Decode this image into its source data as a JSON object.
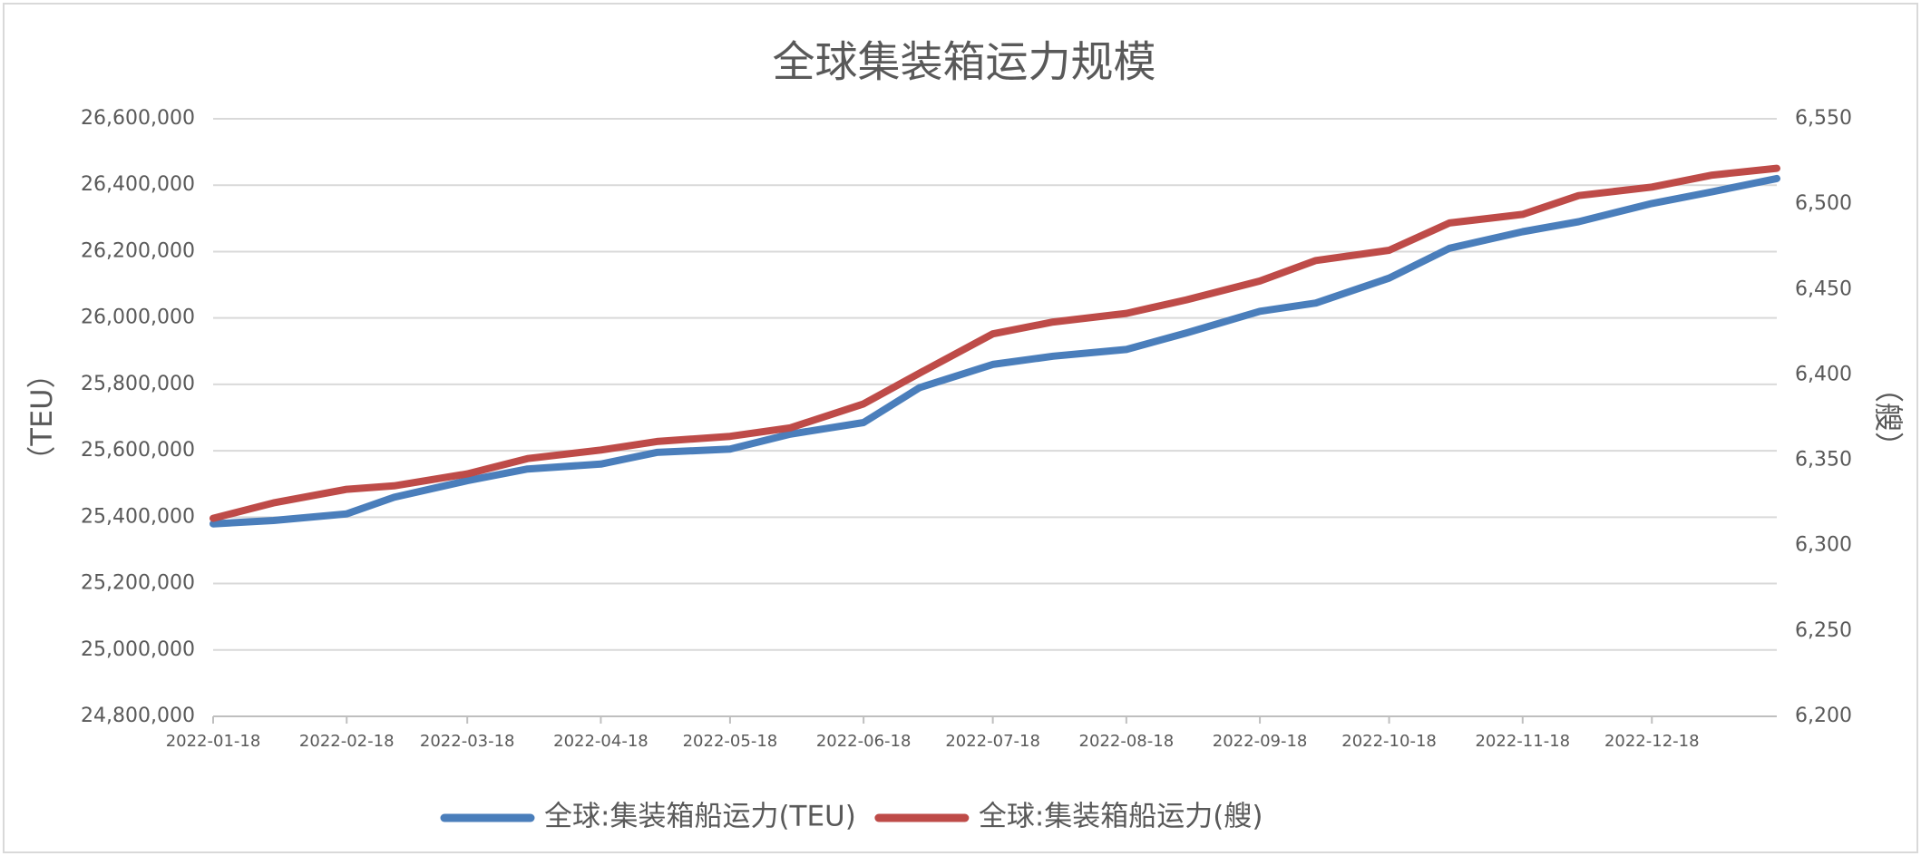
{
  "chart_data": {
    "type": "line",
    "title": "全球集装箱运力规模",
    "y_label": "（TEU）",
    "y2_label": "（艘）",
    "x": [
      "2022-01-18",
      "2022-02-01",
      "2022-02-18",
      "2022-03-01",
      "2022-03-18",
      "2022-04-01",
      "2022-04-18",
      "2022-05-01",
      "2022-05-18",
      "2022-06-01",
      "2022-06-18",
      "2022-07-01",
      "2022-07-18",
      "2022-08-01",
      "2022-08-18",
      "2022-09-01",
      "2022-09-18",
      "2022-10-01",
      "2022-10-18",
      "2022-11-01",
      "2022-11-18",
      "2022-12-01",
      "2022-12-18",
      "2023-01-01",
      "2023-01-16"
    ],
    "xlim": [
      "2022-01-18",
      "2023-01-16"
    ],
    "xticks": [
      "2022-01-18",
      "2022-02-18",
      "2022-03-18",
      "2022-04-18",
      "2022-05-18",
      "2022-06-18",
      "2022-07-18",
      "2022-08-18",
      "2022-09-18",
      "2022-10-18",
      "2022-11-18",
      "2022-12-18"
    ],
    "ylim": [
      24800000,
      26600000
    ],
    "yticks": [
      {
        "value": 24800000,
        "label": "24,800,000"
      },
      {
        "value": 25000000,
        "label": "25,000,000"
      },
      {
        "value": 25200000,
        "label": "25,200,000"
      },
      {
        "value": 25400000,
        "label": "25,400,000"
      },
      {
        "value": 25600000,
        "label": "25,600,000"
      },
      {
        "value": 25800000,
        "label": "25,800,000"
      },
      {
        "value": 26000000,
        "label": "26,000,000"
      },
      {
        "value": 26200000,
        "label": "26,200,000"
      },
      {
        "value": 26400000,
        "label": "26,400,000"
      },
      {
        "value": 26600000,
        "label": "26,600,000"
      }
    ],
    "y2lim": [
      6200,
      6550
    ],
    "y2ticks": [
      {
        "value": 6200,
        "label": "6,200"
      },
      {
        "value": 6250,
        "label": "6,250"
      },
      {
        "value": 6300,
        "label": "6,300"
      },
      {
        "value": 6350,
        "label": "6,350"
      },
      {
        "value": 6400,
        "label": "6,400"
      },
      {
        "value": 6450,
        "label": "6,450"
      },
      {
        "value": 6500,
        "label": "6,500"
      },
      {
        "value": 6550,
        "label": "6,550"
      }
    ],
    "grid": true,
    "legend": "bottom",
    "series": [
      {
        "name": "全球:集装箱船运力(TEU)",
        "color": "#4a7ebb",
        "values": [
          25380000,
          25390000,
          25410000,
          25460000,
          25510000,
          25545000,
          25560000,
          25595000,
          25605000,
          25650000,
          25685000,
          25790000,
          25860000,
          25885000,
          25905000,
          25955000,
          26020000,
          26045000,
          26120000,
          26210000,
          26260000,
          26290000,
          26345000,
          26380000,
          26420000
        ]
      },
      {
        "name": "全球:集装箱船运力(艘)",
        "color": "#be4b48",
        "axis": "y2",
        "values": [
          6316,
          6325,
          6333,
          6335,
          6342,
          6351,
          6356,
          6361,
          6364,
          6369,
          6383,
          6401,
          6424,
          6431,
          6436,
          6444,
          6455,
          6467,
          6473,
          6489,
          6494,
          6505,
          6510,
          6517,
          6521
        ]
      }
    ]
  }
}
